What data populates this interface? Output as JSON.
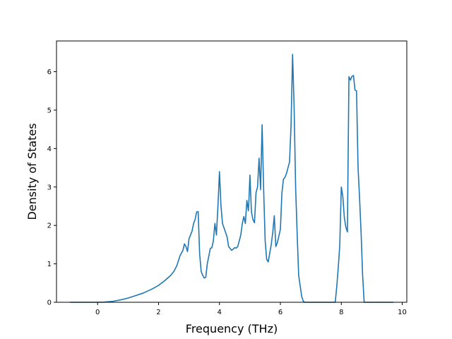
{
  "chart_data": {
    "type": "line",
    "title": "",
    "xlabel": "Frequency (THz)",
    "ylabel": "Density of States",
    "xlim": [
      -1.35,
      10.15
    ],
    "ylim": [
      0,
      6.8
    ],
    "grid": false,
    "xticks": [
      0,
      2,
      4,
      6,
      8,
      10
    ],
    "yticks": [
      0,
      1,
      2,
      3,
      4,
      5,
      6
    ],
    "color": "#1f77b4",
    "series": [
      {
        "x": [
          -0.9,
          -0.5,
          0.0,
          0.2,
          0.5,
          0.8,
          1.0,
          1.2,
          1.5,
          1.8,
          2.0,
          2.2,
          2.4,
          2.5,
          2.6,
          2.7,
          2.75,
          2.8,
          2.85,
          2.9,
          2.95,
          3.0,
          3.1,
          3.15,
          3.2,
          3.25,
          3.3,
          3.35,
          3.4,
          3.45,
          3.5,
          3.55,
          3.6,
          3.7,
          3.75,
          3.8,
          3.85,
          3.9,
          3.95,
          4.0,
          4.05,
          4.1,
          4.2,
          4.25,
          4.3,
          4.35,
          4.4,
          4.5,
          4.55,
          4.6,
          4.65,
          4.7,
          4.75,
          4.8,
          4.85,
          4.9,
          4.95,
          4.97,
          5.0,
          5.05,
          5.1,
          5.15,
          5.2,
          5.25,
          5.3,
          5.35,
          5.4,
          5.45,
          5.5,
          5.55,
          5.6,
          5.7,
          5.75,
          5.8,
          5.85,
          5.9,
          6.0,
          6.05,
          6.1,
          6.15,
          6.2,
          6.25,
          6.3,
          6.35,
          6.4,
          6.45,
          6.5,
          6.55,
          6.6,
          6.7,
          6.75,
          6.8,
          7.0,
          7.5,
          7.8,
          7.85,
          7.9,
          7.95,
          8.0,
          8.05,
          8.1,
          8.15,
          8.2,
          8.25,
          8.3,
          8.35,
          8.4,
          8.45,
          8.5,
          8.55,
          8.6,
          8.65,
          8.7,
          8.75,
          8.8,
          8.85,
          9.0,
          9.5,
          9.7
        ],
        "y": [
          0,
          0,
          0,
          0.004,
          0.025,
          0.07,
          0.11,
          0.16,
          0.24,
          0.35,
          0.44,
          0.56,
          0.7,
          0.8,
          0.95,
          1.2,
          1.28,
          1.35,
          1.52,
          1.45,
          1.32,
          1.65,
          1.85,
          2.05,
          2.15,
          2.35,
          2.36,
          1.25,
          0.8,
          0.7,
          0.63,
          0.65,
          1.0,
          1.4,
          1.42,
          1.6,
          2.05,
          1.75,
          2.5,
          3.4,
          2.5,
          2.05,
          1.82,
          1.7,
          1.45,
          1.4,
          1.35,
          1.42,
          1.41,
          1.45,
          1.6,
          1.75,
          2.05,
          2.23,
          2.05,
          2.65,
          2.38,
          2.7,
          3.31,
          2.35,
          2.15,
          2.07,
          2.85,
          3.0,
          3.75,
          2.93,
          4.62,
          2.95,
          1.6,
          1.12,
          1.05,
          1.5,
          1.82,
          2.25,
          1.45,
          1.55,
          1.9,
          2.85,
          3.2,
          3.25,
          3.35,
          3.5,
          3.65,
          4.6,
          6.45,
          5.1,
          3.0,
          1.8,
          0.7,
          0.15,
          0.03,
          0,
          0,
          0,
          0,
          0.4,
          0.9,
          1.5,
          3.0,
          2.75,
          2.2,
          1.95,
          1.83,
          5.87,
          5.78,
          5.88,
          5.9,
          5.52,
          5.5,
          3.5,
          2.7,
          1.8,
          0.7,
          0,
          0,
          0,
          0,
          0,
          0
        ]
      }
    ]
  }
}
